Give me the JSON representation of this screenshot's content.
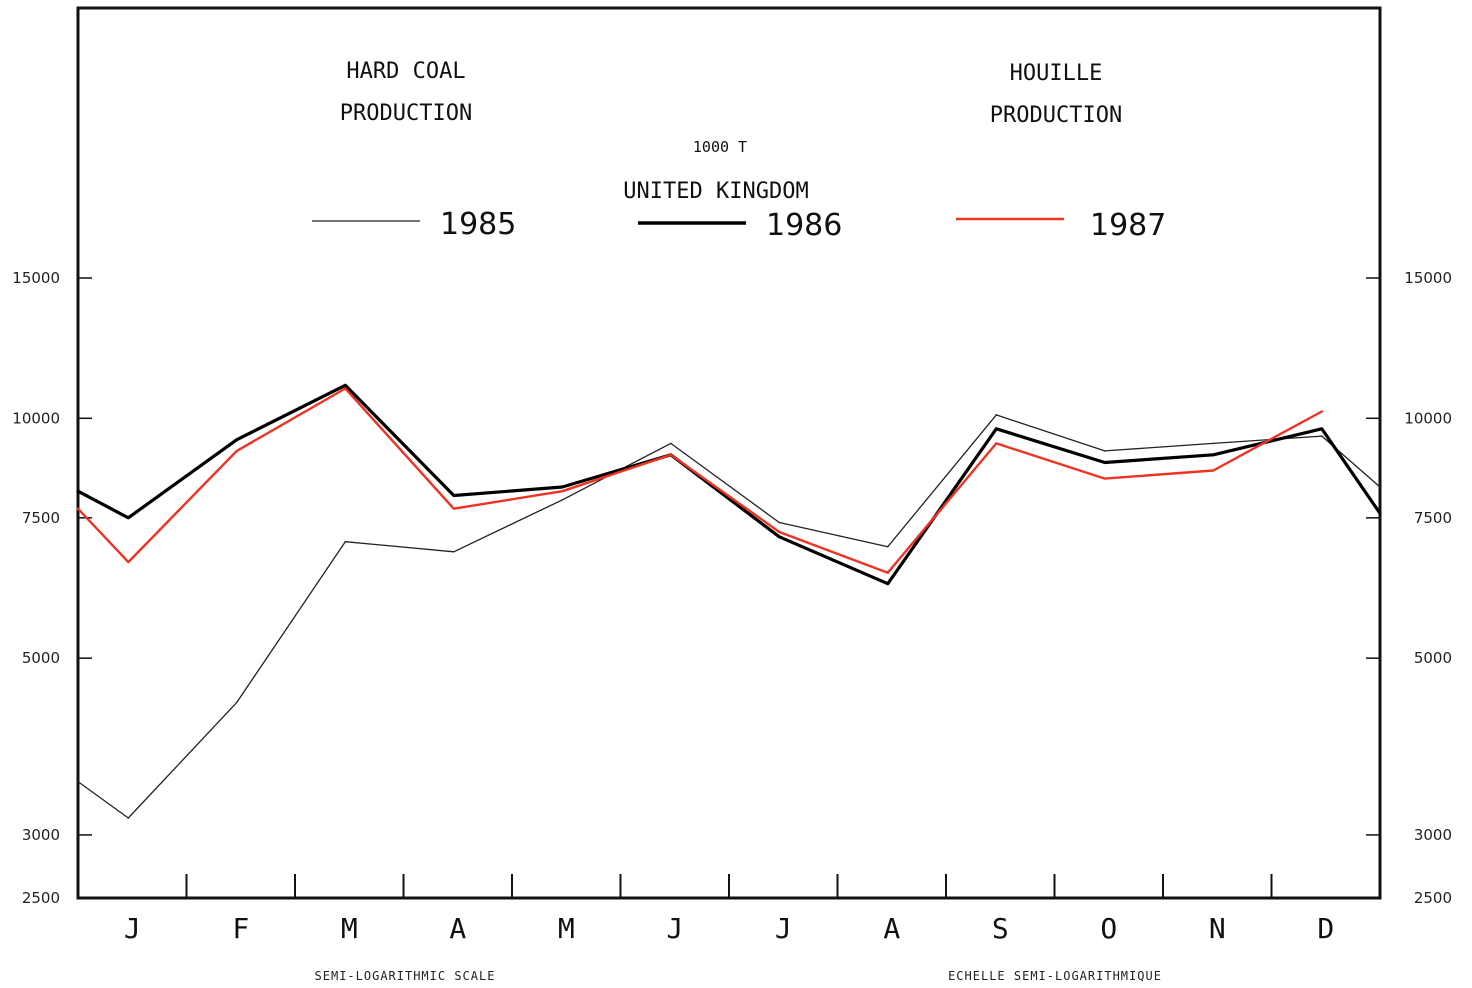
{
  "header": {
    "title_en_line1": "HARD COAL",
    "title_en_line2": "PRODUCTION",
    "title_fr_line1": "HOUILLE",
    "title_fr_line2": "PRODUCTION",
    "unit": "1000 T",
    "country": "UNITED KINGDOM"
  },
  "footer": {
    "scale_en": "SEMI-LOGARITHMIC SCALE",
    "scale_fr": "ECHELLE SEMI-LOGARITHMIQUE"
  },
  "colors": {
    "series_1985": "#222222",
    "series_1986": "#000000",
    "series_1987": "#ee3322",
    "frame": "#111111"
  },
  "chart_data": {
    "type": "line",
    "title": "HARD COAL PRODUCTION / HOUILLE PRODUCTION",
    "subtitle": "UNITED KINGDOM",
    "ylabel": "1000 T",
    "yscale": "log",
    "ylim": [
      2500,
      15000
    ],
    "yticks": [
      2500,
      3000,
      5000,
      7500,
      10000,
      15000
    ],
    "categories": [
      "J",
      "F",
      "M",
      "A",
      "M",
      "J",
      "J",
      "A",
      "S",
      "O",
      "N",
      "D"
    ],
    "legend_position": "top",
    "grid": false,
    "series": [
      {
        "name": "1985",
        "start_value": 3500,
        "values": [
          3150,
          4400,
          7000,
          6800,
          7900,
          9300,
          7400,
          6900,
          10100,
          9100,
          9300,
          9500
        ],
        "end_value": 8200
      },
      {
        "name": "1986",
        "start_value": 8100,
        "values": [
          7500,
          9400,
          11000,
          8000,
          8200,
          9000,
          7100,
          6200,
          9700,
          8800,
          9000,
          9700
        ],
        "end_value": 7600
      },
      {
        "name": "1987",
        "start_value": 7700,
        "values": [
          6600,
          9100,
          10900,
          7700,
          8100,
          9000,
          7200,
          6400,
          9300,
          8400,
          8600,
          10200
        ],
        "end_value": null
      }
    ]
  }
}
